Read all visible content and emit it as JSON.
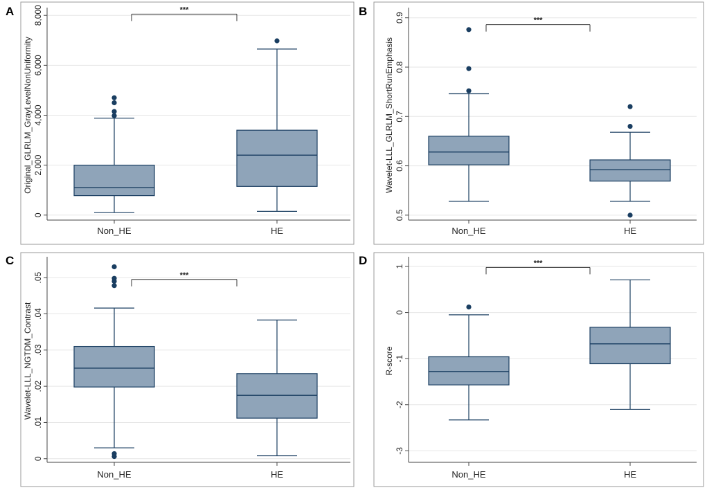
{
  "colors": {
    "box_fill": "#8fa4b9",
    "box_stroke": "#1a3e61",
    "grid": "#e6e6e6",
    "axis": "#444444",
    "text": "#222222",
    "panel_border": "#999999"
  },
  "chart_data": [
    {
      "panel_label": "A",
      "type": "box",
      "ylabel": "Original_GLRLM_GrayLevelNonUniformity",
      "ylim": [
        -200,
        8200
      ],
      "yticks": [
        0,
        2000,
        4000,
        6000,
        8000
      ],
      "ytick_labels": [
        "0",
        "2,000",
        "4,000",
        "6,000",
        "8,000"
      ],
      "categories": [
        "Non_HE",
        "HE"
      ],
      "boxes": [
        {
          "name": "Non_HE",
          "whisker_low": 100,
          "q1": 780,
          "median": 1100,
          "q3": 2000,
          "whisker_high": 3880,
          "outliers": [
            3980,
            4150,
            4500,
            4700
          ]
        },
        {
          "name": "HE",
          "whisker_low": 150,
          "q1": 1150,
          "median": 2400,
          "q3": 3400,
          "whisker_high": 6650,
          "outliers": [
            6980
          ]
        }
      ],
      "significance": {
        "label": "***",
        "y": 8050
      }
    },
    {
      "panel_label": "B",
      "type": "box",
      "ylabel": "Wavelet-LLL_GLRLM_ShortRunEmphasis",
      "ylim": [
        0.49,
        0.915
      ],
      "yticks": [
        0.5,
        0.6,
        0.7,
        0.8,
        0.9
      ],
      "ytick_labels": [
        "0.5",
        "0.6",
        "0.7",
        "0.8",
        "0.9"
      ],
      "categories": [
        "Non_HE",
        "HE"
      ],
      "boxes": [
        {
          "name": "Non_HE",
          "whisker_low": 0.528,
          "q1": 0.602,
          "median": 0.628,
          "q3": 0.66,
          "whisker_high": 0.746,
          "outliers": [
            0.752,
            0.797,
            0.876
          ]
        },
        {
          "name": "HE",
          "whisker_low": 0.528,
          "q1": 0.569,
          "median": 0.592,
          "q3": 0.612,
          "whisker_high": 0.668,
          "outliers": [
            0.68,
            0.72,
            0.5
          ]
        }
      ],
      "significance": {
        "label": "***",
        "y": 0.886
      }
    },
    {
      "panel_label": "C",
      "type": "box",
      "ylabel": "Wavelet-LLL_NGTDM_Contrast",
      "ylim": [
        -0.001,
        0.055
      ],
      "yticks": [
        0,
        0.01,
        0.02,
        0.03,
        0.04,
        0.05
      ],
      "ytick_labels": [
        "0",
        ".01",
        ".02",
        ".03",
        ".04",
        ".05"
      ],
      "categories": [
        "Non_HE",
        "HE"
      ],
      "boxes": [
        {
          "name": "Non_HE",
          "whisker_low": 0.003,
          "q1": 0.0198,
          "median": 0.025,
          "q3": 0.031,
          "whisker_high": 0.0416,
          "outliers": [
            0.0014,
            0.0006,
            0.0478,
            0.049,
            0.0498,
            0.053
          ]
        },
        {
          "name": "HE",
          "whisker_low": 0.0008,
          "q1": 0.0112,
          "median": 0.0175,
          "q3": 0.0235,
          "whisker_high": 0.0383,
          "outliers": []
        }
      ],
      "significance": {
        "label": "***",
        "y": 0.0495
      }
    },
    {
      "panel_label": "D",
      "type": "box",
      "ylabel": "R-score",
      "ylim": [
        -3.25,
        1.15
      ],
      "yticks": [
        -3,
        -2,
        -1,
        0,
        1
      ],
      "ytick_labels": [
        "-3",
        "-2",
        "-1",
        "0",
        "1"
      ],
      "categories": [
        "Non_HE",
        "HE"
      ],
      "boxes": [
        {
          "name": "Non_HE",
          "whisker_low": -2.33,
          "q1": -1.57,
          "median": -1.28,
          "q3": -0.96,
          "whisker_high": -0.05,
          "outliers": [
            0.12
          ]
        },
        {
          "name": "HE",
          "whisker_low": -2.1,
          "q1": -1.11,
          "median": -0.68,
          "q3": -0.32,
          "whisker_high": 0.71,
          "outliers": []
        }
      ],
      "significance": {
        "label": "***",
        "y": 0.98
      }
    }
  ]
}
